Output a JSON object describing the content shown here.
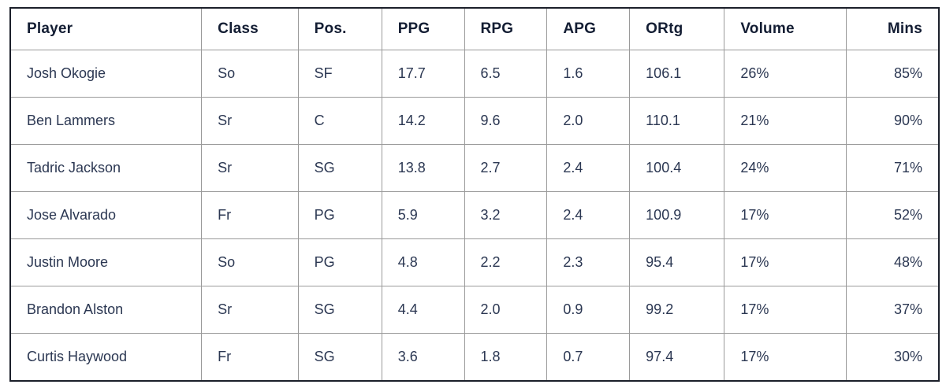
{
  "chart_data": {
    "type": "table",
    "title": "",
    "columns": [
      {
        "id": "player",
        "label": "Player",
        "align": "left"
      },
      {
        "id": "class",
        "label": "Class",
        "align": "left"
      },
      {
        "id": "pos",
        "label": "Pos.",
        "align": "left"
      },
      {
        "id": "ppg",
        "label": "PPG",
        "align": "left"
      },
      {
        "id": "rpg",
        "label": "RPG",
        "align": "left"
      },
      {
        "id": "apg",
        "label": "APG",
        "align": "left"
      },
      {
        "id": "ortg",
        "label": "ORtg",
        "align": "left"
      },
      {
        "id": "volume",
        "label": "Volume",
        "align": "left"
      },
      {
        "id": "mins",
        "label": "Mins",
        "align": "right"
      }
    ],
    "rows": [
      [
        "Josh Okogie",
        "So",
        "SF",
        "17.7",
        "6.5",
        "1.6",
        "106.1",
        "26%",
        "85%"
      ],
      [
        "Ben Lammers",
        "Sr",
        "C",
        "14.2",
        "9.6",
        "2.0",
        "110.1",
        "21%",
        "90%"
      ],
      [
        "Tadric Jackson",
        "Sr",
        "SG",
        "13.8",
        "2.7",
        "2.4",
        "100.4",
        "24%",
        "71%"
      ],
      [
        "Jose Alvarado",
        "Fr",
        "PG",
        "5.9",
        "3.2",
        "2.4",
        "100.9",
        "17%",
        "52%"
      ],
      [
        "Justin Moore",
        "So",
        "PG",
        "4.8",
        "2.2",
        "2.3",
        "95.4",
        "17%",
        "48%"
      ],
      [
        "Brandon Alston",
        "Sr",
        "SG",
        "4.4",
        "2.0",
        "0.9",
        "99.2",
        "17%",
        "37%"
      ],
      [
        "Curtis Haywood",
        "Fr",
        "SG",
        "3.6",
        "1.8",
        "0.7",
        "97.4",
        "17%",
        "30%"
      ]
    ]
  },
  "colors": {
    "text_header": "#131d33",
    "text_body": "#2b3752",
    "border_outer": "#1b1f2a",
    "border_inner": "#9a9a9a",
    "background": "#ffffff"
  }
}
